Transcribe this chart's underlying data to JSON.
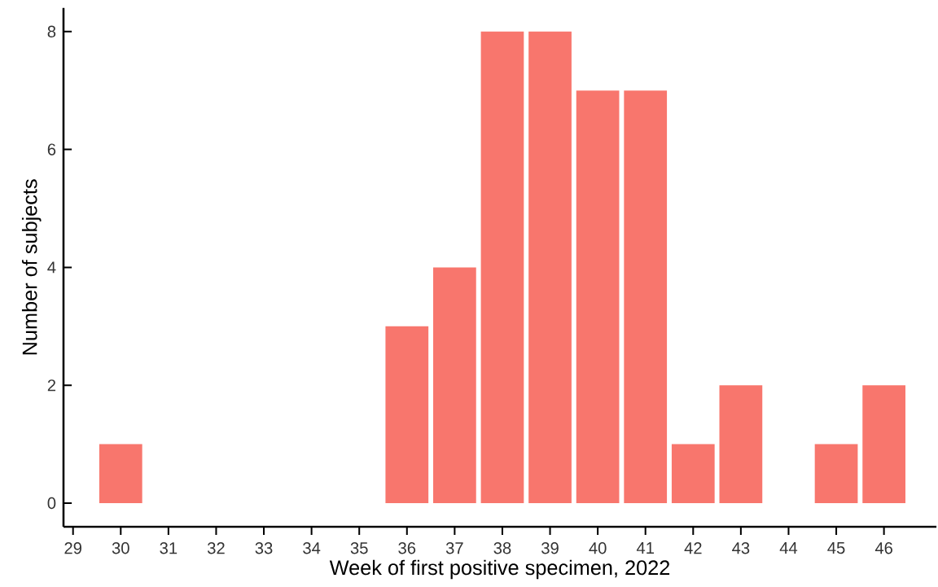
{
  "chart_data": {
    "type": "bar",
    "xlabel": "Week of first positive specimen, 2022",
    "ylabel": "Number of subjects",
    "x": [
      30,
      36,
      37,
      38,
      39,
      40,
      41,
      42,
      43,
      45,
      46
    ],
    "values": [
      1,
      3,
      4,
      8,
      8,
      7,
      7,
      1,
      2,
      1,
      2
    ],
    "color": "#f8766d",
    "xlim": [
      28.8,
      47.1
    ],
    "ylim": [
      -0.4,
      8.4
    ],
    "xticks": [
      29,
      30,
      31,
      32,
      33,
      34,
      35,
      36,
      37,
      38,
      39,
      40,
      41,
      42,
      43,
      44,
      45,
      46
    ],
    "yticks": [
      0,
      2,
      4,
      6,
      8
    ],
    "grid": false
  }
}
